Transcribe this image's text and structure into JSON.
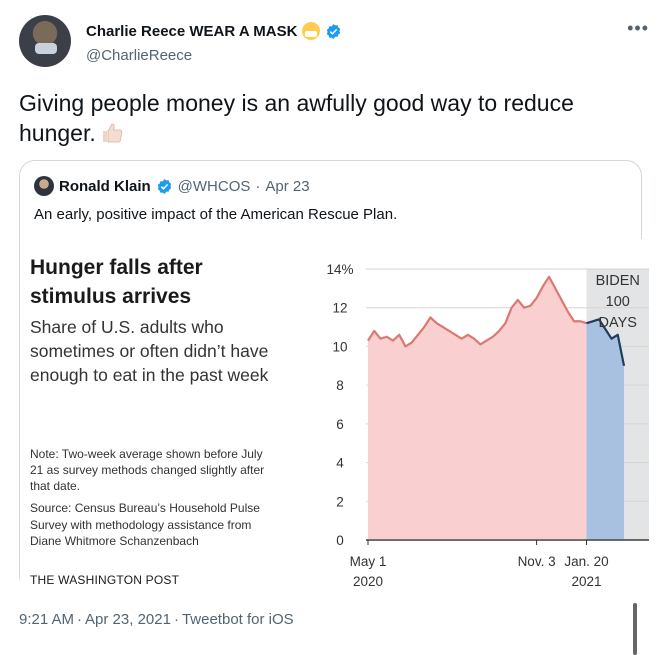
{
  "author": {
    "display_name": "Charlie Reece WEAR A MASK",
    "handle": "@CharlieReece"
  },
  "tweet": {
    "text": "Giving people money is an awfully good way to reduce hunger."
  },
  "quoted": {
    "display_name": "Ronald Klain",
    "handle": "@WHCOS",
    "date": "Apr 23",
    "text": "An early, positive impact of the American Rescue Plan.",
    "graphic": {
      "title": "Hunger falls after stimulus arrives",
      "subtitle": "Share of U.S. adults who sometimes or often didn’t have enough to eat in the past week",
      "note": "Note: Two-week average shown before July 21 as survey methods changed slightly after that date.",
      "source": "Source: Census Bureau’s Household Pulse Survey with methodology assistance from Diane Whitmore Schanzenbach",
      "credit": "THE WASHINGTON POST"
    }
  },
  "footer": {
    "time": "9:21 AM",
    "date": "Apr 23, 2021",
    "client": "Tweetbot for iOS"
  },
  "colors": {
    "verified": "#1d9bf0",
    "pre_fill": "#f9cfcf",
    "pre_line": "#d97a72",
    "post_fill": "#a9c1e1",
    "post_line": "#1f3d5c",
    "shade": "#e3e4e6"
  },
  "chart_data": {
    "type": "area",
    "title": "Hunger falls after stimulus arrives",
    "ylim": [
      0,
      14
    ],
    "y_ticks": [
      "14%",
      "12",
      "10",
      "8",
      "6",
      "4",
      "2",
      "0"
    ],
    "y_tick_values": [
      14,
      12,
      10,
      8,
      6,
      4,
      2,
      0
    ],
    "x_tick_labels": [
      {
        "label": "May 1",
        "sub": "2020",
        "x": 0
      },
      {
        "label": "Nov. 3",
        "sub": "",
        "x": 27
      },
      {
        "label": "Jan. 20",
        "sub": "2021",
        "x": 35
      }
    ],
    "annotation": "BIDEN 100 DAYS",
    "annotation_lines": [
      "BIDEN",
      "100",
      "DAYS"
    ],
    "shaded_from_x": 35,
    "series": [
      {
        "segment": "before",
        "x": [
          0,
          1,
          2,
          3,
          4,
          5,
          6,
          7,
          8,
          9,
          10,
          11,
          12,
          13,
          14,
          15,
          16,
          17,
          18,
          19,
          20,
          21,
          22,
          23,
          24,
          25,
          26,
          27,
          28,
          29,
          30,
          31,
          32,
          33,
          34,
          35
        ],
        "values": [
          10.3,
          10.8,
          10.4,
          10.5,
          10.3,
          10.6,
          10.0,
          10.2,
          10.6,
          11.0,
          11.5,
          11.2,
          11.0,
          10.8,
          10.6,
          10.4,
          10.6,
          10.4,
          10.1,
          10.3,
          10.5,
          10.8,
          11.2,
          12.0,
          12.4,
          12.0,
          12.1,
          12.5,
          13.1,
          13.6,
          13.0,
          12.4,
          11.8,
          11.3,
          11.3,
          11.2
        ]
      },
      {
        "segment": "after",
        "x": [
          35,
          36,
          37,
          38,
          39,
          40,
          41
        ],
        "values": [
          11.2,
          11.3,
          11.4,
          10.9,
          10.4,
          10.6,
          9.0
        ]
      }
    ]
  }
}
